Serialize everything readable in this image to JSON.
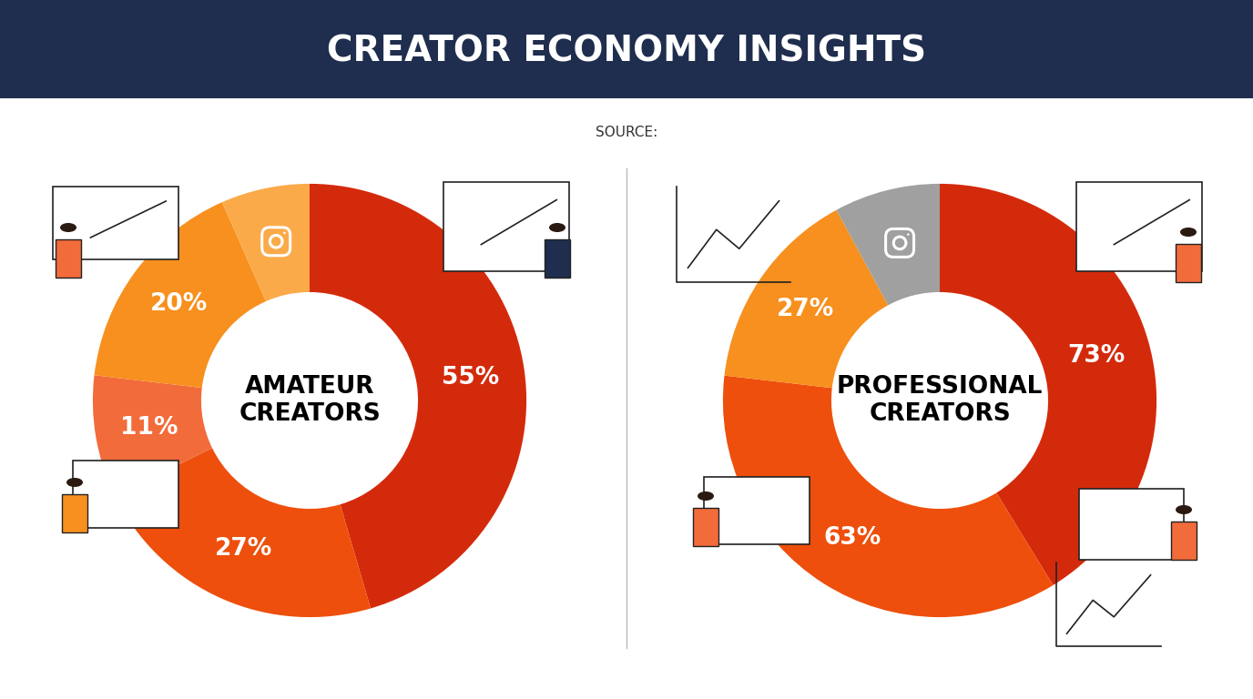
{
  "title": "CREATOR ECONOMY INSIGHTS",
  "source": "SOURCE:",
  "chart_data": [
    {
      "type": "pie",
      "title": "AMATEUR\nCREATORS",
      "values": [
        55,
        27,
        11,
        20,
        8
      ],
      "value_labels": [
        "55%",
        "27%",
        "11%",
        "20%",
        null
      ],
      "colors": [
        "#d42a0c",
        "#ee4f0c",
        "#f26b3a",
        "#f7901e",
        "#fbaa4a"
      ],
      "data_labels": true
    },
    {
      "type": "pie",
      "title": "PROFESSIONAL\nCREATORS",
      "values": [
        73,
        63,
        27,
        14
      ],
      "value_labels": [
        "73%",
        "63%",
        "27%",
        null
      ],
      "colors": [
        "#d42a0c",
        "#ee4f0c",
        "#f7901e",
        "#a0a0a0"
      ],
      "data_labels": true
    }
  ]
}
